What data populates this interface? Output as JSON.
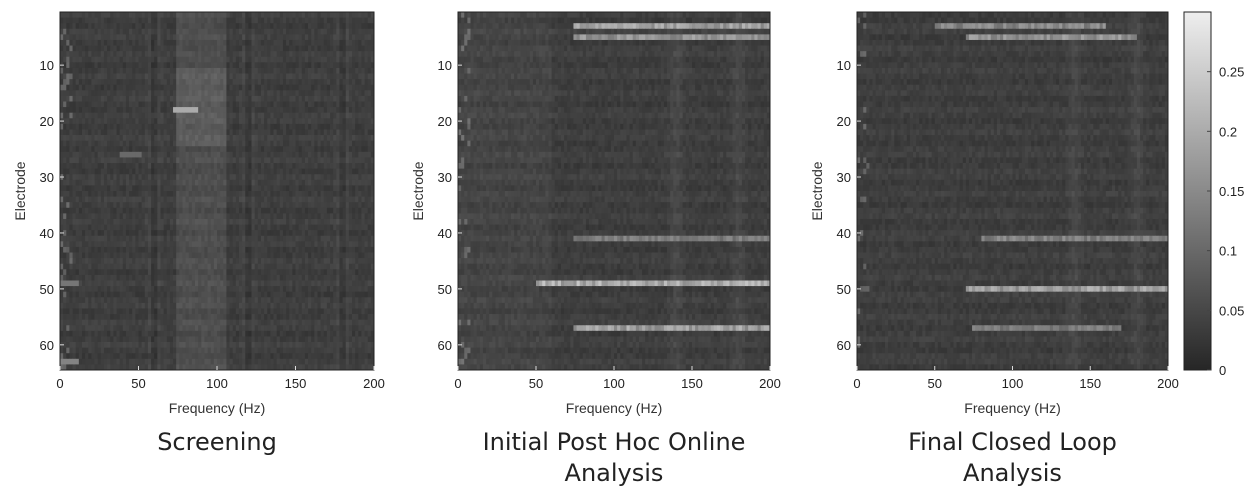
{
  "chart_data": [
    {
      "type": "heatmap",
      "title": "Screening",
      "xlabel": "Frequency (Hz)",
      "ylabel": "Electrode",
      "xlim": [
        0,
        200
      ],
      "ylim": [
        1,
        64
      ],
      "y_reversed": true,
      "xticks": [
        0,
        50,
        100,
        150,
        200
      ],
      "yticks": [
        10,
        20,
        30,
        40,
        50,
        60
      ],
      "bright_bands_hz": [
        60,
        120,
        180
      ],
      "bright_region_hz": [
        75,
        105
      ],
      "hotspots": [
        {
          "electrode": 18,
          "hz": 80,
          "value": 0.2
        },
        {
          "electrode": 26,
          "hz": 45,
          "value": 0.1
        },
        {
          "electrode": 49,
          "hz": 5,
          "value": 0.12
        },
        {
          "electrode": 63,
          "hz": 5,
          "value": 0.14
        }
      ]
    },
    {
      "type": "heatmap",
      "title": "Initial Post Hoc Online Analysis",
      "xlabel": "Frequency (Hz)",
      "ylabel": "Electrode",
      "xlim": [
        0,
        200
      ],
      "ylim": [
        1,
        64
      ],
      "y_reversed": true,
      "xticks": [
        0,
        50,
        100,
        150,
        200
      ],
      "yticks": [
        10,
        20,
        30,
        40,
        50,
        60
      ],
      "bright_rows": [
        {
          "electrode": 3,
          "from_hz": 75,
          "to_hz": 200,
          "value": 0.2
        },
        {
          "electrode": 5,
          "from_hz": 75,
          "to_hz": 200,
          "value": 0.18
        },
        {
          "electrode": 41,
          "from_hz": 75,
          "to_hz": 200,
          "value": 0.14
        },
        {
          "electrode": 49,
          "from_hz": 50,
          "to_hz": 200,
          "value": 0.22
        },
        {
          "electrode": 57,
          "from_hz": 75,
          "to_hz": 200,
          "value": 0.2
        }
      ]
    },
    {
      "type": "heatmap",
      "title": "Final Closed Loop Analysis",
      "xlabel": "Frequency (Hz)",
      "ylabel": "Electrode",
      "xlim": [
        0,
        200
      ],
      "ylim": [
        1,
        64
      ],
      "y_reversed": true,
      "xticks": [
        0,
        50,
        100,
        150,
        200
      ],
      "yticks": [
        10,
        20,
        30,
        40,
        50,
        60
      ],
      "bright_rows": [
        {
          "electrode": 3,
          "from_hz": 50,
          "to_hz": 160,
          "value": 0.16
        },
        {
          "electrode": 5,
          "from_hz": 70,
          "to_hz": 180,
          "value": 0.18
        },
        {
          "electrode": 41,
          "from_hz": 80,
          "to_hz": 200,
          "value": 0.15
        },
        {
          "electrode": 50,
          "from_hz": 70,
          "to_hz": 200,
          "value": 0.2
        },
        {
          "electrode": 57,
          "from_hz": 75,
          "to_hz": 170,
          "value": 0.14
        }
      ]
    }
  ],
  "colorbar": {
    "min": 0,
    "max": 0.3,
    "ticks": [
      "0",
      "0.05",
      "0.1",
      "0.15",
      "0.2",
      "0.25"
    ],
    "colormap": "gray"
  }
}
